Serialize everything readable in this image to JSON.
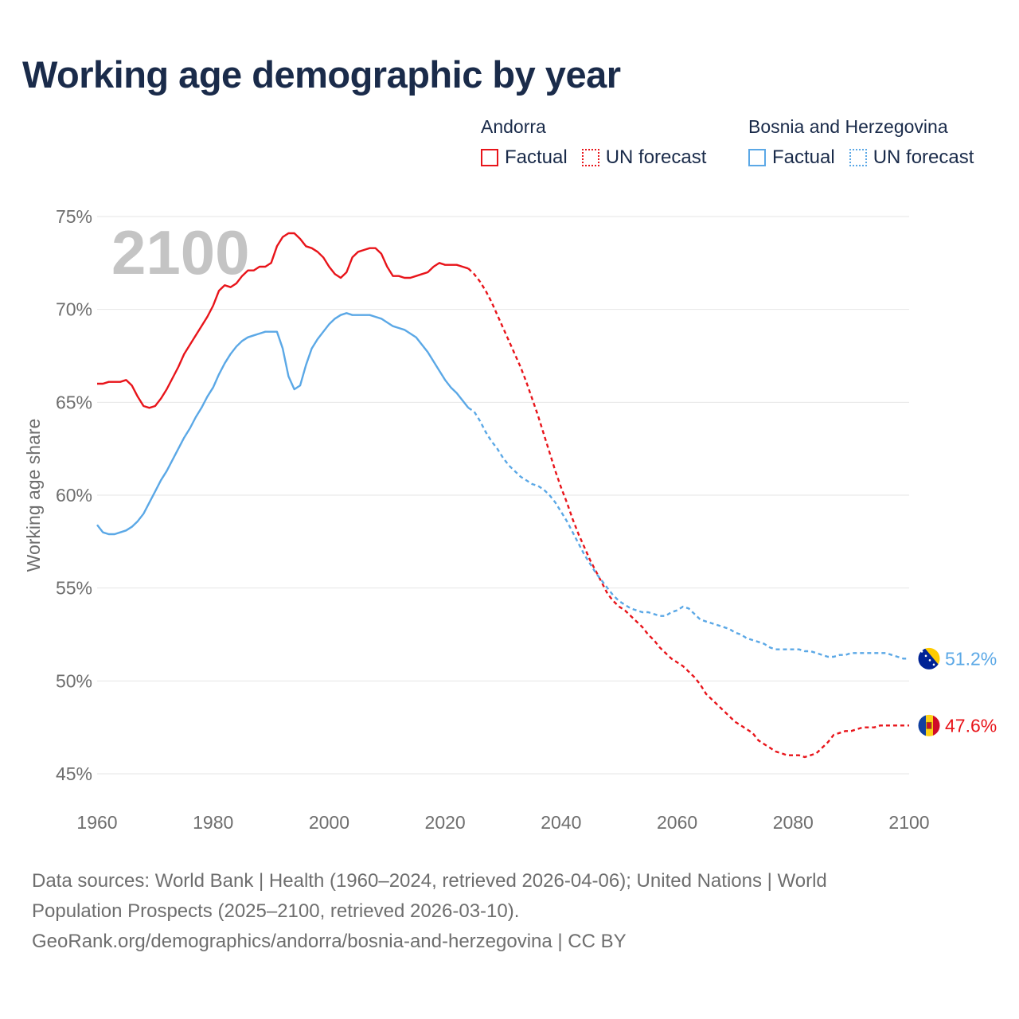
{
  "title": "Working age demographic by year",
  "legend": {
    "groups": [
      {
        "name": "Andorra",
        "color": "#e8141a",
        "factual": "Factual",
        "forecast": "UN forecast"
      },
      {
        "name": "Bosnia and Herzegovina",
        "color": "#5ba8e6",
        "factual": "Factual",
        "forecast": "UN forecast"
      }
    ]
  },
  "footer": {
    "line1": "Data sources: World Bank | Health (1960–2024, retrieved 2026-04-06); United Nations | World",
    "line2": "Population Prospects (2025–2100, retrieved 2026-03-10).",
    "line3": "GeoRank.org/demographics/andorra/bosnia-and-herzegovina | CC BY"
  },
  "chart_data": {
    "type": "line",
    "ylabel": "Working age share",
    "xlabel": "",
    "year_watermark": "2100",
    "xlim": [
      1960,
      2100
    ],
    "ylim": [
      45,
      75
    ],
    "x_ticks": [
      1960,
      1980,
      2000,
      2020,
      2040,
      2060,
      2080,
      2100
    ],
    "y_ticks": [
      45,
      50,
      55,
      60,
      65,
      70,
      75
    ],
    "y_tick_labels": [
      "45%",
      "50%",
      "55%",
      "60%",
      "65%",
      "70%",
      "75%"
    ],
    "forecast_start": 2024,
    "series": [
      {
        "name": "Andorra",
        "color": "#e8141a",
        "end_label": "47.6%",
        "flag": "andorra",
        "points": [
          [
            1960,
            66.0
          ],
          [
            1961,
            66.0
          ],
          [
            1962,
            66.1
          ],
          [
            1963,
            66.1
          ],
          [
            1964,
            66.1
          ],
          [
            1965,
            66.2
          ],
          [
            1966,
            65.9
          ],
          [
            1967,
            65.3
          ],
          [
            1968,
            64.8
          ],
          [
            1969,
            64.7
          ],
          [
            1970,
            64.8
          ],
          [
            1971,
            65.2
          ],
          [
            1972,
            65.7
          ],
          [
            1973,
            66.3
          ],
          [
            1974,
            66.9
          ],
          [
            1975,
            67.6
          ],
          [
            1976,
            68.1
          ],
          [
            1977,
            68.6
          ],
          [
            1978,
            69.1
          ],
          [
            1979,
            69.6
          ],
          [
            1980,
            70.2
          ],
          [
            1981,
            71.0
          ],
          [
            1982,
            71.3
          ],
          [
            1983,
            71.2
          ],
          [
            1984,
            71.4
          ],
          [
            1985,
            71.8
          ],
          [
            1986,
            72.1
          ],
          [
            1987,
            72.1
          ],
          [
            1988,
            72.3
          ],
          [
            1989,
            72.3
          ],
          [
            1990,
            72.5
          ],
          [
            1991,
            73.4
          ],
          [
            1992,
            73.9
          ],
          [
            1993,
            74.1
          ],
          [
            1994,
            74.1
          ],
          [
            1995,
            73.8
          ],
          [
            1996,
            73.4
          ],
          [
            1997,
            73.3
          ],
          [
            1998,
            73.1
          ],
          [
            1999,
            72.8
          ],
          [
            2000,
            72.3
          ],
          [
            2001,
            71.9
          ],
          [
            2002,
            71.7
          ],
          [
            2003,
            72.0
          ],
          [
            2004,
            72.8
          ],
          [
            2005,
            73.1
          ],
          [
            2006,
            73.2
          ],
          [
            2007,
            73.3
          ],
          [
            2008,
            73.3
          ],
          [
            2009,
            73.0
          ],
          [
            2010,
            72.3
          ],
          [
            2011,
            71.8
          ],
          [
            2012,
            71.8
          ],
          [
            2013,
            71.7
          ],
          [
            2014,
            71.7
          ],
          [
            2015,
            71.8
          ],
          [
            2016,
            71.9
          ],
          [
            2017,
            72.0
          ],
          [
            2018,
            72.3
          ],
          [
            2019,
            72.5
          ],
          [
            2020,
            72.4
          ],
          [
            2021,
            72.4
          ],
          [
            2022,
            72.4
          ],
          [
            2023,
            72.3
          ],
          [
            2024,
            72.2
          ],
          [
            2025,
            71.9
          ],
          [
            2026,
            71.5
          ],
          [
            2027,
            71.0
          ],
          [
            2028,
            70.4
          ],
          [
            2029,
            69.7
          ],
          [
            2030,
            69.0
          ],
          [
            2031,
            68.3
          ],
          [
            2032,
            67.6
          ],
          [
            2033,
            66.9
          ],
          [
            2034,
            66.1
          ],
          [
            2035,
            65.2
          ],
          [
            2036,
            64.3
          ],
          [
            2037,
            63.3
          ],
          [
            2038,
            62.3
          ],
          [
            2039,
            61.3
          ],
          [
            2040,
            60.4
          ],
          [
            2041,
            59.6
          ],
          [
            2042,
            58.7
          ],
          [
            2043,
            57.9
          ],
          [
            2044,
            57.2
          ],
          [
            2045,
            56.5
          ],
          [
            2046,
            55.9
          ],
          [
            2047,
            55.3
          ],
          [
            2048,
            54.7
          ],
          [
            2049,
            54.3
          ],
          [
            2050,
            54.0
          ],
          [
            2051,
            53.8
          ],
          [
            2052,
            53.5
          ],
          [
            2053,
            53.2
          ],
          [
            2054,
            52.9
          ],
          [
            2055,
            52.5
          ],
          [
            2056,
            52.2
          ],
          [
            2057,
            51.8
          ],
          [
            2058,
            51.5
          ],
          [
            2059,
            51.2
          ],
          [
            2060,
            51.0
          ],
          [
            2061,
            50.8
          ],
          [
            2062,
            50.5
          ],
          [
            2063,
            50.2
          ],
          [
            2064,
            49.8
          ],
          [
            2065,
            49.3
          ],
          [
            2066,
            49.0
          ],
          [
            2067,
            48.7
          ],
          [
            2068,
            48.4
          ],
          [
            2069,
            48.1
          ],
          [
            2070,
            47.8
          ],
          [
            2071,
            47.6
          ],
          [
            2072,
            47.4
          ],
          [
            2073,
            47.2
          ],
          [
            2074,
            46.8
          ],
          [
            2075,
            46.6
          ],
          [
            2076,
            46.4
          ],
          [
            2077,
            46.2
          ],
          [
            2078,
            46.1
          ],
          [
            2079,
            46.0
          ],
          [
            2080,
            46.0
          ],
          [
            2081,
            46.0
          ],
          [
            2082,
            45.9
          ],
          [
            2083,
            46.0
          ],
          [
            2084,
            46.1
          ],
          [
            2085,
            46.4
          ],
          [
            2086,
            46.7
          ],
          [
            2087,
            47.1
          ],
          [
            2088,
            47.2
          ],
          [
            2089,
            47.3
          ],
          [
            2090,
            47.3
          ],
          [
            2091,
            47.4
          ],
          [
            2092,
            47.5
          ],
          [
            2093,
            47.5
          ],
          [
            2094,
            47.5
          ],
          [
            2095,
            47.6
          ],
          [
            2096,
            47.6
          ],
          [
            2097,
            47.6
          ],
          [
            2098,
            47.6
          ],
          [
            2099,
            47.6
          ],
          [
            2100,
            47.6
          ]
        ]
      },
      {
        "name": "Bosnia and Herzegovina",
        "color": "#5ba8e6",
        "end_label": "51.2%",
        "flag": "bosnia",
        "points": [
          [
            1960,
            58.4
          ],
          [
            1961,
            58.0
          ],
          [
            1962,
            57.9
          ],
          [
            1963,
            57.9
          ],
          [
            1964,
            58.0
          ],
          [
            1965,
            58.1
          ],
          [
            1966,
            58.3
          ],
          [
            1967,
            58.6
          ],
          [
            1968,
            59.0
          ],
          [
            1969,
            59.6
          ],
          [
            1970,
            60.2
          ],
          [
            1971,
            60.8
          ],
          [
            1972,
            61.3
          ],
          [
            1973,
            61.9
          ],
          [
            1974,
            62.5
          ],
          [
            1975,
            63.1
          ],
          [
            1976,
            63.6
          ],
          [
            1977,
            64.2
          ],
          [
            1978,
            64.7
          ],
          [
            1979,
            65.3
          ],
          [
            1980,
            65.8
          ],
          [
            1981,
            66.5
          ],
          [
            1982,
            67.1
          ],
          [
            1983,
            67.6
          ],
          [
            1984,
            68.0
          ],
          [
            1985,
            68.3
          ],
          [
            1986,
            68.5
          ],
          [
            1987,
            68.6
          ],
          [
            1988,
            68.7
          ],
          [
            1989,
            68.8
          ],
          [
            1990,
            68.8
          ],
          [
            1991,
            68.8
          ],
          [
            1992,
            67.9
          ],
          [
            1993,
            66.4
          ],
          [
            1994,
            65.7
          ],
          [
            1995,
            65.9
          ],
          [
            1996,
            67.0
          ],
          [
            1997,
            67.9
          ],
          [
            1998,
            68.4
          ],
          [
            1999,
            68.8
          ],
          [
            2000,
            69.2
          ],
          [
            2001,
            69.5
          ],
          [
            2002,
            69.7
          ],
          [
            2003,
            69.8
          ],
          [
            2004,
            69.7
          ],
          [
            2005,
            69.7
          ],
          [
            2006,
            69.7
          ],
          [
            2007,
            69.7
          ],
          [
            2008,
            69.6
          ],
          [
            2009,
            69.5
          ],
          [
            2010,
            69.3
          ],
          [
            2011,
            69.1
          ],
          [
            2012,
            69.0
          ],
          [
            2013,
            68.9
          ],
          [
            2014,
            68.7
          ],
          [
            2015,
            68.5
          ],
          [
            2016,
            68.1
          ],
          [
            2017,
            67.7
          ],
          [
            2018,
            67.2
          ],
          [
            2019,
            66.7
          ],
          [
            2020,
            66.2
          ],
          [
            2021,
            65.8
          ],
          [
            2022,
            65.5
          ],
          [
            2023,
            65.1
          ],
          [
            2024,
            64.7
          ],
          [
            2025,
            64.5
          ],
          [
            2026,
            64.0
          ],
          [
            2027,
            63.4
          ],
          [
            2028,
            62.9
          ],
          [
            2029,
            62.5
          ],
          [
            2030,
            62.0
          ],
          [
            2031,
            61.6
          ],
          [
            2032,
            61.3
          ],
          [
            2033,
            61.0
          ],
          [
            2034,
            60.8
          ],
          [
            2035,
            60.6
          ],
          [
            2036,
            60.5
          ],
          [
            2037,
            60.3
          ],
          [
            2038,
            60.0
          ],
          [
            2039,
            59.6
          ],
          [
            2040,
            59.1
          ],
          [
            2041,
            58.6
          ],
          [
            2042,
            58.0
          ],
          [
            2043,
            57.4
          ],
          [
            2044,
            56.8
          ],
          [
            2045,
            56.3
          ],
          [
            2046,
            55.8
          ],
          [
            2047,
            55.4
          ],
          [
            2048,
            55.0
          ],
          [
            2049,
            54.6
          ],
          [
            2050,
            54.3
          ],
          [
            2051,
            54.1
          ],
          [
            2052,
            53.9
          ],
          [
            2053,
            53.8
          ],
          [
            2054,
            53.7
          ],
          [
            2055,
            53.7
          ],
          [
            2056,
            53.6
          ],
          [
            2057,
            53.5
          ],
          [
            2058,
            53.5
          ],
          [
            2059,
            53.7
          ],
          [
            2060,
            53.8
          ],
          [
            2061,
            54.0
          ],
          [
            2062,
            53.9
          ],
          [
            2063,
            53.6
          ],
          [
            2064,
            53.3
          ],
          [
            2065,
            53.2
          ],
          [
            2066,
            53.1
          ],
          [
            2067,
            53.0
          ],
          [
            2068,
            52.9
          ],
          [
            2069,
            52.8
          ],
          [
            2070,
            52.6
          ],
          [
            2071,
            52.5
          ],
          [
            2072,
            52.3
          ],
          [
            2073,
            52.2
          ],
          [
            2074,
            52.1
          ],
          [
            2075,
            52.0
          ],
          [
            2076,
            51.8
          ],
          [
            2077,
            51.7
          ],
          [
            2078,
            51.7
          ],
          [
            2079,
            51.7
          ],
          [
            2080,
            51.7
          ],
          [
            2081,
            51.7
          ],
          [
            2082,
            51.6
          ],
          [
            2083,
            51.6
          ],
          [
            2084,
            51.5
          ],
          [
            2085,
            51.4
          ],
          [
            2086,
            51.3
          ],
          [
            2087,
            51.3
          ],
          [
            2088,
            51.4
          ],
          [
            2089,
            51.4
          ],
          [
            2090,
            51.5
          ],
          [
            2091,
            51.5
          ],
          [
            2092,
            51.5
          ],
          [
            2093,
            51.5
          ],
          [
            2094,
            51.5
          ],
          [
            2095,
            51.5
          ],
          [
            2096,
            51.5
          ],
          [
            2097,
            51.4
          ],
          [
            2098,
            51.3
          ],
          [
            2099,
            51.2
          ],
          [
            2100,
            51.2
          ]
        ]
      }
    ]
  }
}
